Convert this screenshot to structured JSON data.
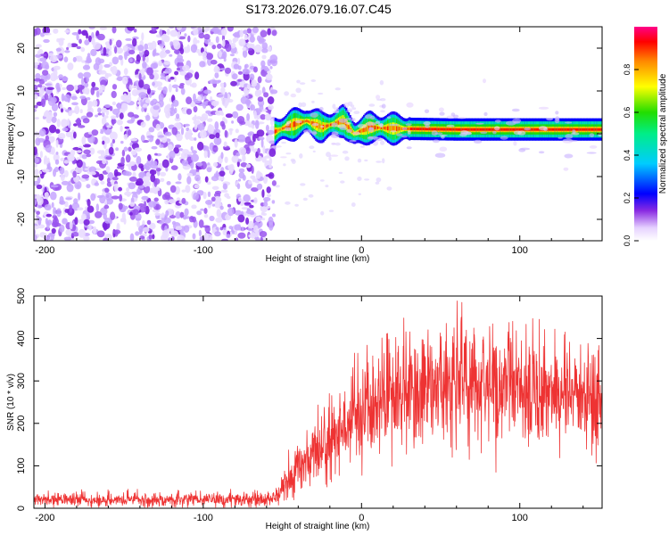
{
  "page_title": "S173.2026.079.16.07.C45",
  "chart_data": [
    {
      "type": "heatmap",
      "id": "spectrogram",
      "xlabel": "Height of straight line (km)",
      "ylabel": "Frequency (Hz)",
      "xlim": [
        -207,
        152
      ],
      "ylim": [
        -25,
        25
      ],
      "xticks": [
        -200,
        -100,
        0,
        100
      ],
      "yticks": [
        -20,
        -10,
        0,
        10,
        20
      ],
      "colorbar": {
        "label": "Normalized spectral amplitude",
        "range": [
          0,
          1
        ],
        "ticks": [
          0.0,
          0.2,
          0.4,
          0.6,
          0.8
        ],
        "tick_labels": [
          "0.0",
          "0.2",
          "0.4",
          "0.6",
          "0.8"
        ]
      },
      "features": {
        "noise_region_x": [
          -207,
          -55
        ],
        "noise_amplitude": [
          0.1,
          0.3
        ],
        "signal_start_x": -55,
        "signal_band_hz": [
          0,
          2
        ],
        "signal_ridge": [
          {
            "x": -55,
            "hz": 0.5
          },
          {
            "x": -45,
            "hz": 2
          },
          {
            "x": -35,
            "hz": 3
          },
          {
            "x": -25,
            "hz": 1.5
          },
          {
            "x": -12,
            "hz": 3
          },
          {
            "x": -5,
            "hz": 0
          },
          {
            "x": 5,
            "hz": 1.5
          },
          {
            "x": 20,
            "hz": 1.2
          },
          {
            "x": 60,
            "hz": 1
          },
          {
            "x": 152,
            "hz": 1
          }
        ]
      }
    },
    {
      "type": "line",
      "id": "snr",
      "xlabel": "Height of straight line (km)",
      "ylabel": "SNR (10 * v/v)",
      "xlim": [
        -207,
        152
      ],
      "ylim": [
        0,
        500
      ],
      "xticks": [
        -200,
        -100,
        0,
        100
      ],
      "yticks": [
        0,
        100,
        200,
        300,
        400,
        500
      ],
      "series": [
        {
          "name": "SNR",
          "color": "#ee3333",
          "envelope": {
            "x": [
              -207,
              -55,
              -45,
              -30,
              -15,
              0,
              20,
              40,
              60,
              80,
              100,
              120,
              140,
              152
            ],
            "mean": [
              20,
              20,
              80,
              130,
              180,
              215,
              260,
              285,
              300,
              295,
              285,
              275,
              270,
              265
            ],
            "spread": [
              12,
              15,
              40,
              60,
              80,
              100,
              110,
              115,
              120,
              115,
              110,
              105,
              100,
              95
            ],
            "max": [
              45,
              45,
              150,
              230,
              330,
              430,
              470,
              500,
              500,
              490,
              460,
              440,
              400,
              380
            ]
          }
        }
      ]
    }
  ]
}
